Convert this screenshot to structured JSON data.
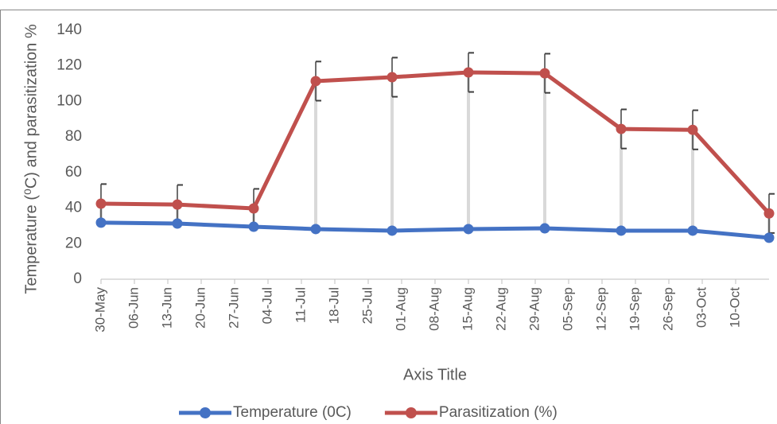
{
  "chart_data": {
    "type": "line",
    "y_label": "Temperature (⁰C) and parasitization %",
    "x_label": "Axis Title",
    "xlim": [
      0,
      140
    ],
    "xticks": [
      {
        "value": 0,
        "label": "30-May"
      },
      {
        "value": 7,
        "label": "06-Jun"
      },
      {
        "value": 14,
        "label": "13-Jun"
      },
      {
        "value": 21,
        "label": "20-Jun"
      },
      {
        "value": 28,
        "label": "27-Jun"
      },
      {
        "value": 35,
        "label": "04-Jul"
      },
      {
        "value": 42,
        "label": "11-Jul"
      },
      {
        "value": 49,
        "label": "18-Jul"
      },
      {
        "value": 56,
        "label": "25-Jul"
      },
      {
        "value": 63,
        "label": "01-Aug"
      },
      {
        "value": 70,
        "label": "08-Aug"
      },
      {
        "value": 77,
        "label": "15-Aug"
      },
      {
        "value": 84,
        "label": "22-Aug"
      },
      {
        "value": 91,
        "label": "29-Aug"
      },
      {
        "value": 98,
        "label": "05-Sep"
      },
      {
        "value": 105,
        "label": "12-Sep"
      },
      {
        "value": 112,
        "label": "19-Sep"
      },
      {
        "value": 119,
        "label": "26-Sep"
      },
      {
        "value": 126,
        "label": "03-Oct"
      },
      {
        "value": 133,
        "label": "10-Oct"
      }
    ],
    "x": [
      0,
      16,
      32,
      45,
      61,
      77,
      93,
      109,
      124,
      140
    ],
    "ylim": [
      0,
      140
    ],
    "yticks": [
      0,
      20,
      40,
      60,
      80,
      100,
      120,
      140
    ],
    "grid": false,
    "legend": "bottom",
    "series": [
      {
        "name": "Temperature (0C)",
        "color": "#4472c4",
        "values": [
          31.8,
          31.3,
          29.5,
          28.2,
          27.3,
          28.2,
          28.6,
          27.3,
          27.3,
          23.3
        ]
      },
      {
        "name": "Parasitization (%)",
        "color": "#c0504d",
        "values": [
          42.5,
          42,
          39.8,
          111.4,
          113.6,
          116.3,
          115.8,
          84.5,
          84,
          37
        ],
        "errors": [
          11,
          11,
          11,
          11,
          11,
          11,
          11,
          11,
          11,
          11
        ]
      }
    ]
  }
}
